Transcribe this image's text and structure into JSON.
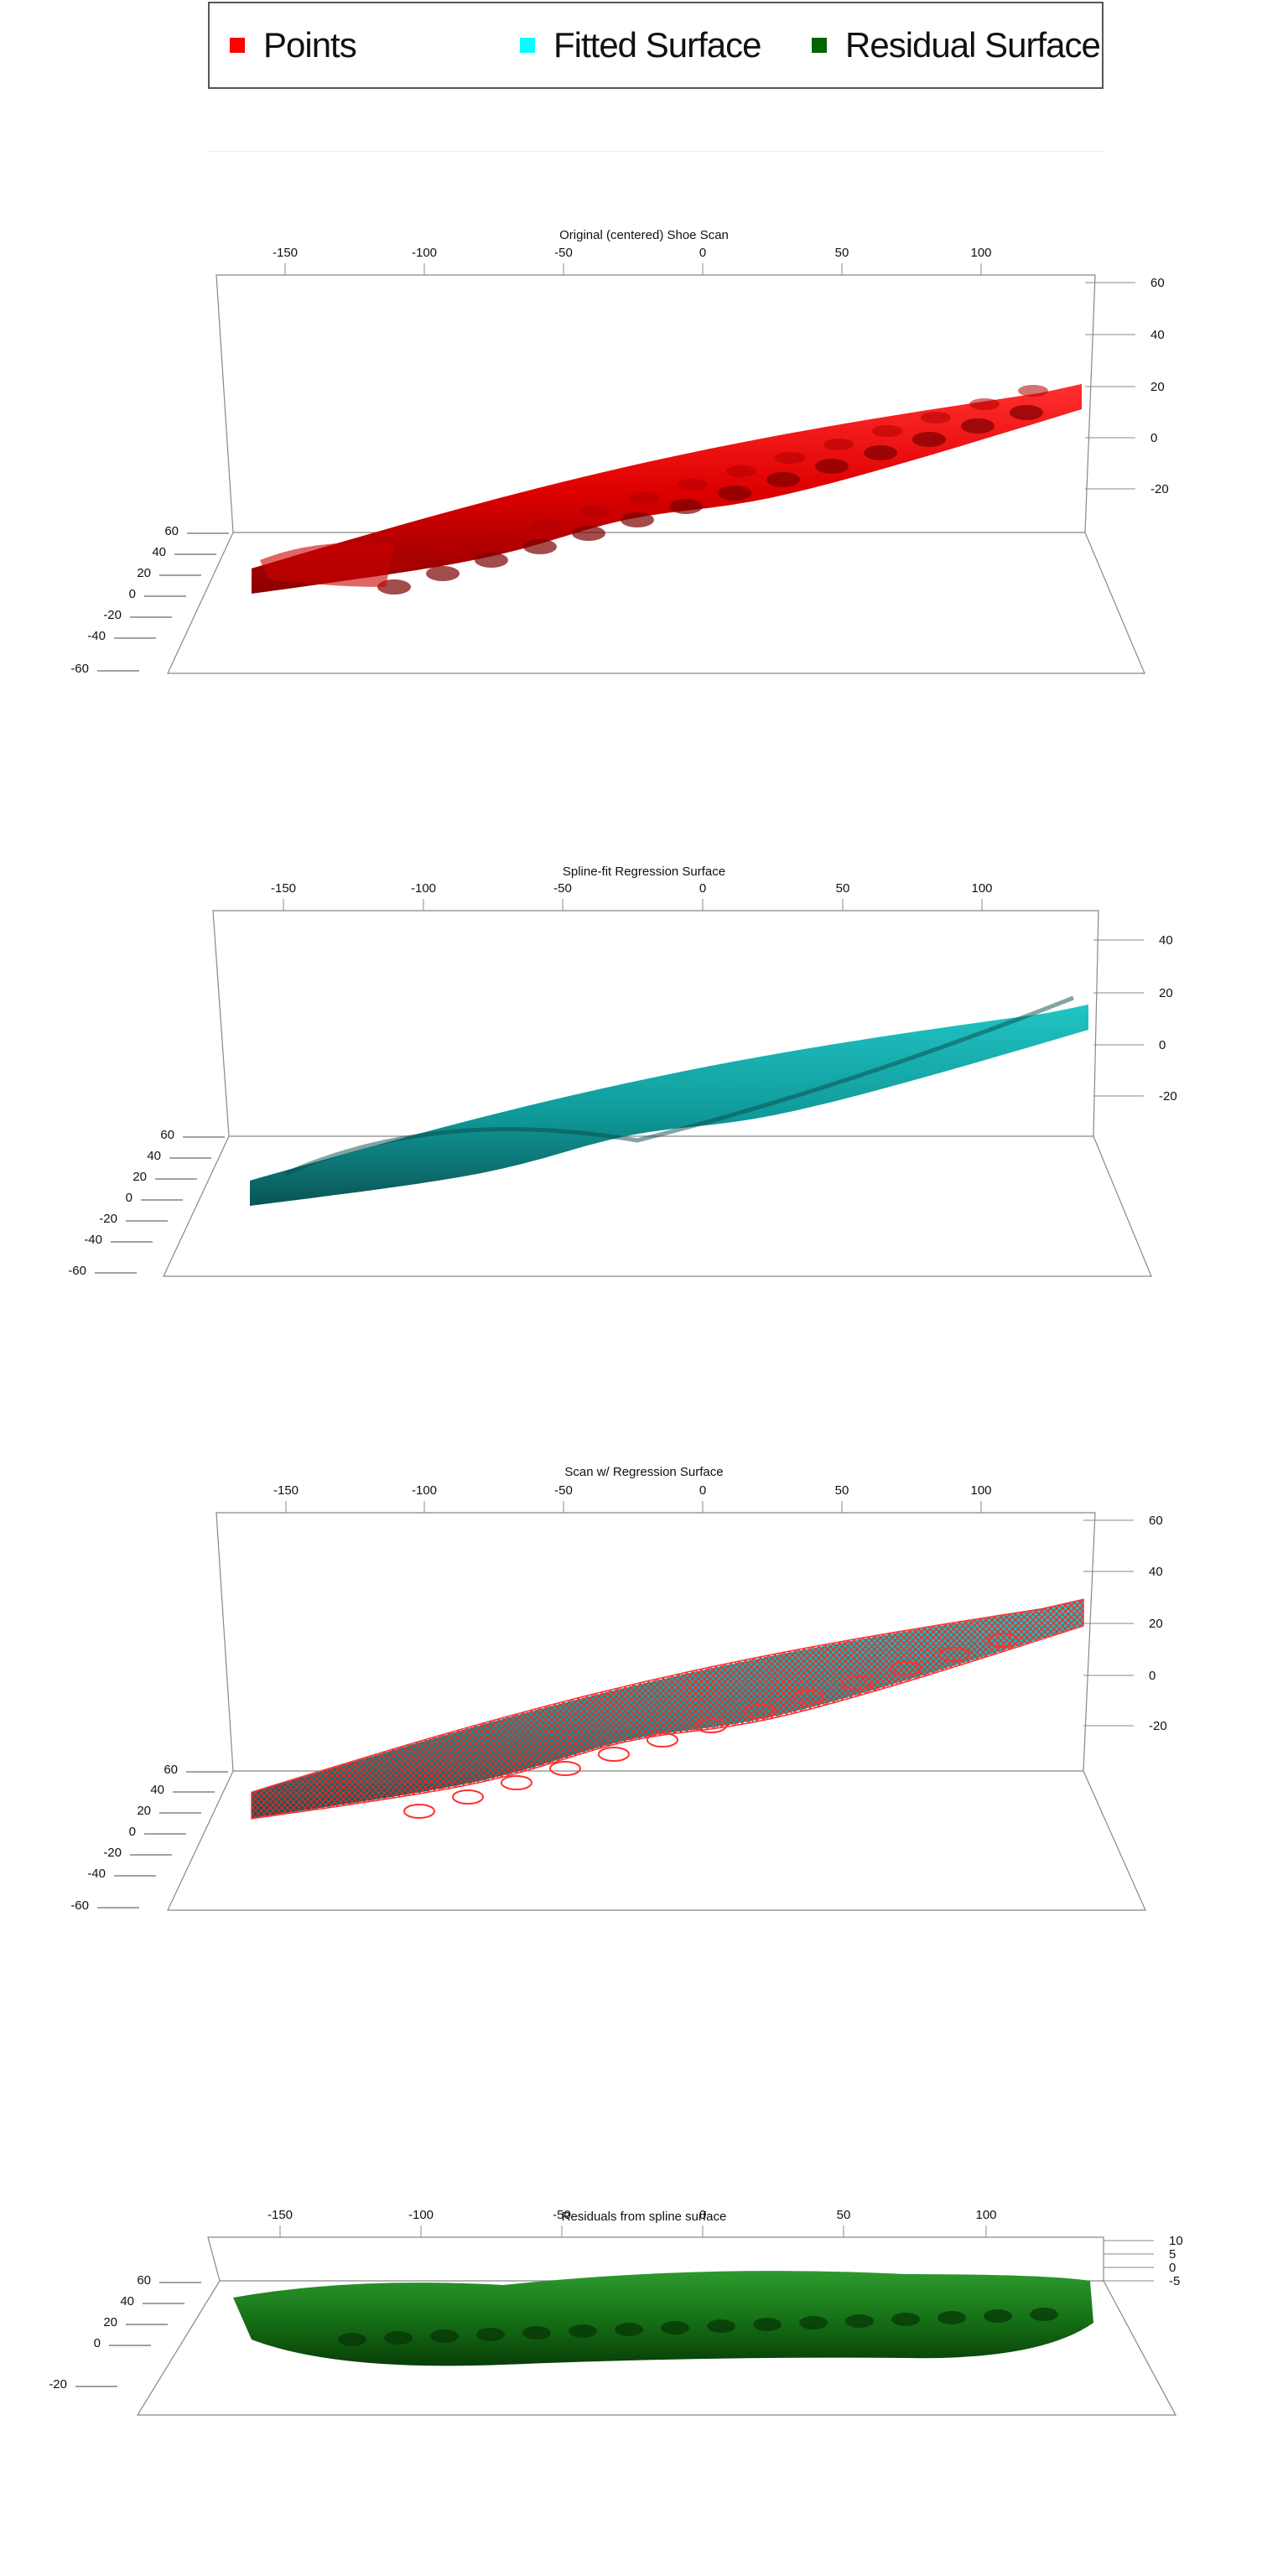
{
  "legend": {
    "items": [
      {
        "label": "Points",
        "color": "#ff0000"
      },
      {
        "label": "Fitted Surface",
        "color": "#00ffff"
      },
      {
        "label": "Residual Surface",
        "color": "#006400"
      }
    ]
  },
  "chart_data": [
    {
      "type": "surface3d",
      "title": "Original (centered) Shoe Scan",
      "series_name": "Points",
      "color": "#ff0000",
      "x_ticks": [
        "-150",
        "-100",
        "-50",
        "0",
        "50",
        "100"
      ],
      "y_ticks": [
        "60",
        "40",
        "20",
        "0",
        "-20",
        "-40",
        "-60"
      ],
      "z_ticks": [
        "60",
        "40",
        "20",
        "0",
        "-20"
      ],
      "xlim": [
        -175,
        140
      ]
    },
    {
      "type": "surface3d",
      "title": "Spline-fit Regression Surface",
      "series_name": "Fitted Surface",
      "color": "#00a8a8",
      "x_ticks": [
        "-150",
        "-100",
        "-50",
        "0",
        "50",
        "100"
      ],
      "y_ticks": [
        "60",
        "40",
        "20",
        "0",
        "-20",
        "-40",
        "-60"
      ],
      "z_ticks": [
        "40",
        "20",
        "0",
        "-20"
      ],
      "xlim": [
        -175,
        140
      ]
    },
    {
      "type": "surface3d",
      "title": "Scan w/ Regression Surface",
      "series_name": "Points + Fitted Surface",
      "color": "#00a8a8",
      "overlay_color": "#ff2a2a",
      "x_ticks": [
        "-150",
        "-100",
        "-50",
        "0",
        "50",
        "100"
      ],
      "y_ticks": [
        "60",
        "40",
        "20",
        "0",
        "-20",
        "-40",
        "-60"
      ],
      "z_ticks": [
        "60",
        "40",
        "20",
        "0",
        "-20"
      ],
      "xlim": [
        -175,
        140
      ]
    },
    {
      "type": "surface3d",
      "title": "Residuals from spline surface",
      "series_name": "Residual Surface",
      "color": "#0b6b0b",
      "x_ticks": [
        "-150",
        "-100",
        "-50",
        "0",
        "50",
        "100"
      ],
      "y_ticks": [
        "60",
        "40",
        "20",
        "0",
        "-20"
      ],
      "z_ticks": [
        "10",
        "5",
        "0",
        "-5"
      ],
      "xlim": [
        -175,
        140
      ]
    }
  ]
}
